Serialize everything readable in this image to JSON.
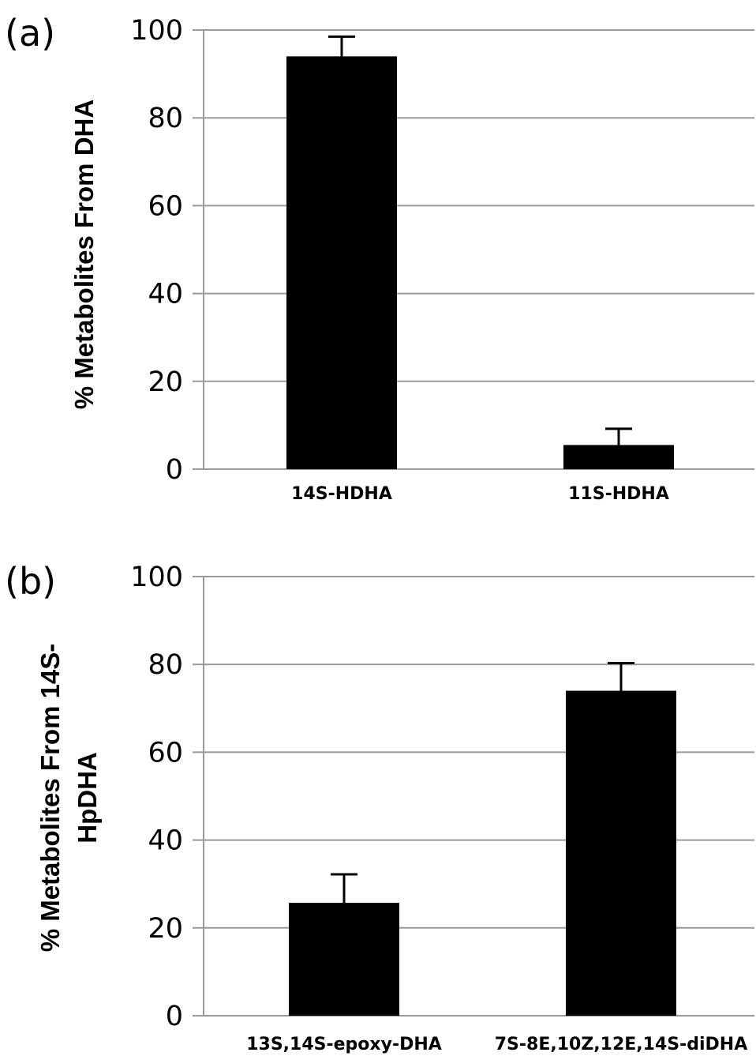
{
  "chart_data": [
    {
      "type": "bar",
      "panel_label": "(a)",
      "categories": [
        "14S-HDHA",
        "11S-HDHA"
      ],
      "values": [
        94,
        5.5
      ],
      "errors": [
        4.5,
        3.7
      ],
      "ylabel_lines": [
        "% Metabolites From DHA"
      ],
      "yticks": [
        "0",
        "20",
        "40",
        "60",
        "80",
        "100"
      ],
      "ylim": [
        0,
        100
      ],
      "grid": true,
      "bar_color": "#000000"
    },
    {
      "type": "bar",
      "panel_label": "(b)",
      "categories": [
        "13S,14S-epoxy-DHA",
        "7S-8E,10Z,12E,14S-diDHA"
      ],
      "values": [
        25.7,
        74
      ],
      "errors": [
        6.5,
        6.3
      ],
      "ylabel_lines": [
        "% Metabolites From 14S-",
        "HpDHA"
      ],
      "yticks": [
        "0",
        "20",
        "40",
        "60",
        "80",
        "100"
      ],
      "ylim": [
        0,
        100
      ],
      "grid": true,
      "bar_color": "#000000"
    }
  ]
}
